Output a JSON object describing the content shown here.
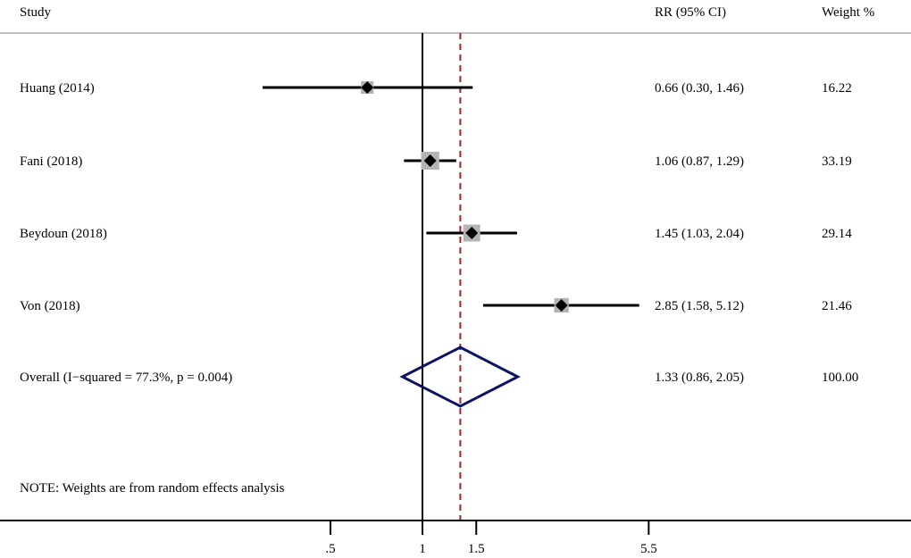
{
  "chart_data": {
    "type": "forest",
    "scale": "log",
    "headers": {
      "study": "Study",
      "effect": "RR (95% CI)",
      "weight": "Weight %"
    },
    "studies": [
      {
        "label": "Huang (2014)",
        "rr": 0.66,
        "lo": 0.3,
        "hi": 1.46,
        "text": "0.66 (0.30, 1.46)",
        "weight": "16.22"
      },
      {
        "label": "Fani (2018)",
        "rr": 1.06,
        "lo": 0.87,
        "hi": 1.29,
        "text": "1.06 (0.87, 1.29)",
        "weight": "33.19"
      },
      {
        "label": "Beydoun (2018)",
        "rr": 1.45,
        "lo": 1.03,
        "hi": 2.04,
        "text": "1.45 (1.03, 2.04)",
        "weight": "29.14"
      },
      {
        "label": "Von (2018)",
        "rr": 2.85,
        "lo": 1.58,
        "hi": 5.12,
        "text": "2.85 (1.58, 5.12)",
        "weight": "21.46"
      }
    ],
    "overall": {
      "label": "Overall  (I−squared = 77.3%, p = 0.004)",
      "rr": 1.33,
      "lo": 0.86,
      "hi": 2.05,
      "text": "1.33 (0.86, 2.05)",
      "weight": "100.00"
    },
    "note": "NOTE: Weights are from random effects analysis",
    "null_line": 1,
    "x_ticks": [
      {
        "value": 0.5,
        "label": ".5"
      },
      {
        "value": 1,
        "label": "1"
      },
      {
        "value": 1.5,
        "label": "1.5"
      },
      {
        "value": 5.5,
        "label": "5.5"
      }
    ],
    "colors": {
      "ci_line": "#000000",
      "weight_box": "#b3b3b3",
      "diamond": "#0d1266",
      "overall_line": "#a3262a",
      "header_rule": "#c0c0c0"
    }
  }
}
